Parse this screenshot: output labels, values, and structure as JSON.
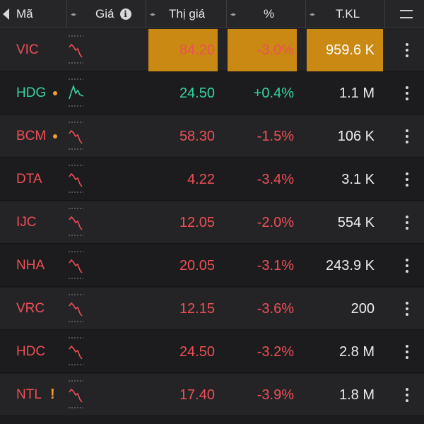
{
  "colors": {
    "down": "#ef4f57",
    "up": "#33d69f",
    "highlight": "#c98913",
    "alert_dot": "#f0a030"
  },
  "header": {
    "back_icon": "back-arrow-icon",
    "columns": {
      "symbol": "Mã",
      "chart": "Giá",
      "price": "Thị giá",
      "percent": "%",
      "volume": "T.KL"
    },
    "info_icon_label": "i",
    "sort_icon": "◂▸",
    "menu_icon": "hamburger-menu-icon"
  },
  "rows": [
    {
      "symbol": "VIC",
      "price": "84.20",
      "percent": "-3.0%",
      "volume": "959.6 K",
      "trend": "down",
      "highlighted": true,
      "marker": "none"
    },
    {
      "symbol": "HDG",
      "price": "24.50",
      "percent": "+0.4%",
      "volume": "1.1 M",
      "trend": "up",
      "highlighted": false,
      "marker": "dot"
    },
    {
      "symbol": "BCM",
      "price": "58.30",
      "percent": "-1.5%",
      "volume": "106 K",
      "trend": "down",
      "highlighted": false,
      "marker": "dot"
    },
    {
      "symbol": "DTA",
      "price": "4.22",
      "percent": "-3.4%",
      "volume": "3.1 K",
      "trend": "down",
      "highlighted": false,
      "marker": "none"
    },
    {
      "symbol": "IJC",
      "price": "12.05",
      "percent": "-2.0%",
      "volume": "554 K",
      "trend": "down",
      "highlighted": false,
      "marker": "none"
    },
    {
      "symbol": "NHA",
      "price": "20.05",
      "percent": "-3.1%",
      "volume": "243.9 K",
      "trend": "down",
      "highlighted": false,
      "marker": "none"
    },
    {
      "symbol": "VRC",
      "price": "12.15",
      "percent": "-3.6%",
      "volume": "200",
      "trend": "down",
      "highlighted": false,
      "marker": "none"
    },
    {
      "symbol": "HDC",
      "price": "24.50",
      "percent": "-3.2%",
      "volume": "2.8 M",
      "trend": "down",
      "highlighted": false,
      "marker": "none"
    },
    {
      "symbol": "NTL",
      "price": "17.40",
      "percent": "-3.9%",
      "volume": "1.8 M",
      "trend": "down",
      "highlighted": false,
      "marker": "warning"
    }
  ]
}
